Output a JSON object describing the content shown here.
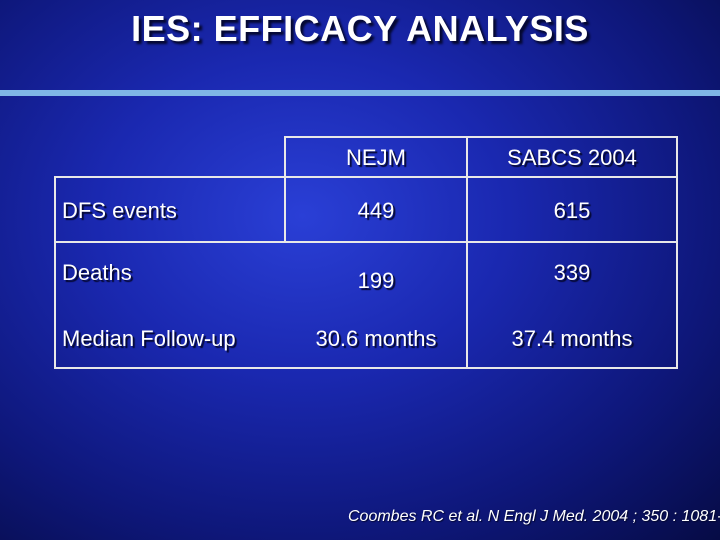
{
  "slide": {
    "title": "IES: EFFICACY ANALYSIS",
    "citation": "Coombes RC et al. N Engl J Med. 2004 ; 350 : 1081-"
  },
  "table": {
    "columns": [
      "NEJM",
      "SABCS 2004"
    ],
    "rows": [
      {
        "label": "DFS events",
        "values": [
          "449",
          "615"
        ]
      },
      {
        "label": "Deaths",
        "values": [
          "199",
          "339"
        ]
      },
      {
        "label": "Median Follow-up",
        "values": [
          "30.6 months",
          "37.4 months"
        ]
      }
    ]
  },
  "colors": {
    "background": "#1a28b0",
    "rule": "#7fb6e6",
    "text": "#ffffff"
  }
}
